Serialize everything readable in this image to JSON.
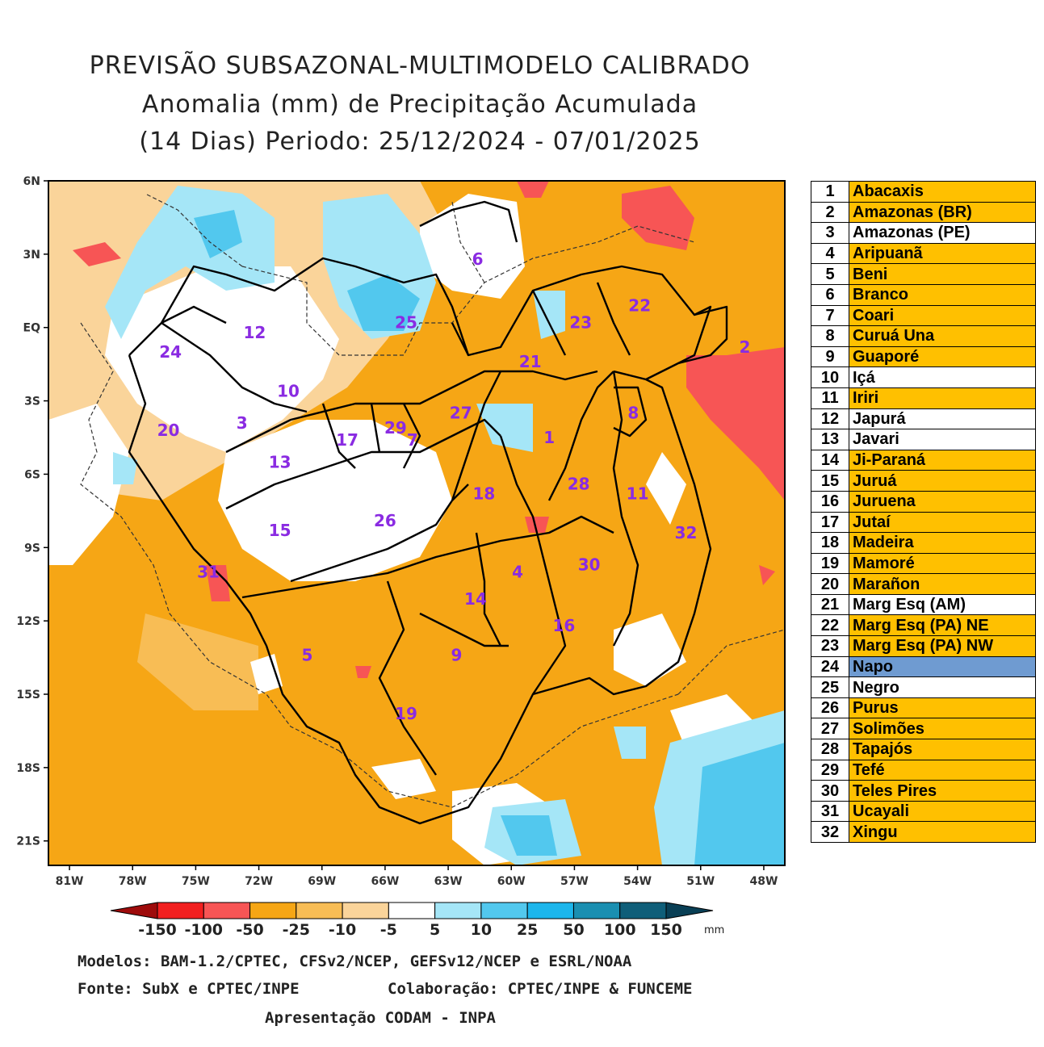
{
  "title": {
    "line1": "PREVISÃO SUBSAZONAL-MULTIMODELO CALIBRADO",
    "line2": "Anomalia (mm) de Precipitação Acumulada",
    "line3": "(14 Dias) Periodo: 25/12/2024 - 07/01/2025"
  },
  "map": {
    "lat_labels": [
      "6N",
      "3N",
      "EQ",
      "3S",
      "6S",
      "9S",
      "12S",
      "15S",
      "18S",
      "21S"
    ],
    "lon_labels": [
      "81W",
      "78W",
      "75W",
      "72W",
      "69W",
      "66W",
      "63W",
      "60W",
      "57W",
      "54W",
      "51W",
      "48W"
    ],
    "lat_range": [
      6,
      -22
    ],
    "lon_range": [
      -82,
      -47
    ],
    "basin_labels": [
      {
        "n": "1",
        "lon": -58.2,
        "lat": -4.5
      },
      {
        "n": "2",
        "lon": -48.9,
        "lat": -0.8
      },
      {
        "n": "3",
        "lon": -72.8,
        "lat": -3.9
      },
      {
        "n": "4",
        "lon": -59.7,
        "lat": -10.0
      },
      {
        "n": "5",
        "lon": -69.7,
        "lat": -13.4
      },
      {
        "n": "6",
        "lon": -61.6,
        "lat": 2.8
      },
      {
        "n": "7",
        "lon": -64.7,
        "lat": -4.6
      },
      {
        "n": "8",
        "lon": -54.2,
        "lat": -3.5
      },
      {
        "n": "9",
        "lon": -62.6,
        "lat": -13.4
      },
      {
        "n": "10",
        "lon": -70.6,
        "lat": -2.6
      },
      {
        "n": "11",
        "lon": -54.0,
        "lat": -6.8
      },
      {
        "n": "12",
        "lon": -72.2,
        "lat": -0.2
      },
      {
        "n": "13",
        "lon": -71.0,
        "lat": -5.5
      },
      {
        "n": "14",
        "lon": -61.7,
        "lat": -11.1
      },
      {
        "n": "15",
        "lon": -71.0,
        "lat": -8.3
      },
      {
        "n": "16",
        "lon": -57.5,
        "lat": -12.2
      },
      {
        "n": "17",
        "lon": -67.8,
        "lat": -4.6
      },
      {
        "n": "18",
        "lon": -61.3,
        "lat": -6.8
      },
      {
        "n": "19",
        "lon": -65.0,
        "lat": -15.8
      },
      {
        "n": "20",
        "lon": -76.3,
        "lat": -4.2
      },
      {
        "n": "21",
        "lon": -59.1,
        "lat": -1.4
      },
      {
        "n": "22",
        "lon": -53.9,
        "lat": 0.9
      },
      {
        "n": "23",
        "lon": -56.7,
        "lat": 0.2
      },
      {
        "n": "24",
        "lon": -76.2,
        "lat": -1.0
      },
      {
        "n": "25",
        "lon": -65.0,
        "lat": 0.2
      },
      {
        "n": "26",
        "lon": -66.0,
        "lat": -7.9
      },
      {
        "n": "27",
        "lon": -62.4,
        "lat": -3.5
      },
      {
        "n": "28",
        "lon": -56.8,
        "lat": -6.4
      },
      {
        "n": "29",
        "lon": -65.5,
        "lat": -4.1
      },
      {
        "n": "30",
        "lon": -56.3,
        "lat": -9.7
      },
      {
        "n": "31",
        "lon": -74.4,
        "lat": -10.0
      },
      {
        "n": "32",
        "lon": -51.7,
        "lat": -8.4
      }
    ]
  },
  "colorbar": {
    "labels": [
      "-150",
      "-100",
      "-50",
      "-25",
      "-10",
      "-5",
      "5",
      "10",
      "25",
      "50",
      "100",
      "150"
    ],
    "unit": "mm",
    "colors": [
      "#9e0b0b",
      "#f21f1f",
      "#f75555",
      "#f6a615",
      "#f8bd55",
      "#fad49a",
      "#ffffff",
      "#a5e6f7",
      "#52c8ee",
      "#1cb6ec",
      "#1a8fb1",
      "#0f5e79",
      "#093f55"
    ]
  },
  "legend": [
    {
      "num": "1",
      "name": "Abacaxis",
      "color": "#ffc000"
    },
    {
      "num": "2",
      "name": "Amazonas (BR)",
      "color": "#ffc000"
    },
    {
      "num": "3",
      "name": "Amazonas (PE)",
      "color": "#ffffff"
    },
    {
      "num": "4",
      "name": "Aripuanã",
      "color": "#ffc000"
    },
    {
      "num": "5",
      "name": "Beni",
      "color": "#ffc000"
    },
    {
      "num": "6",
      "name": "Branco",
      "color": "#ffc000"
    },
    {
      "num": "7",
      "name": "Coari",
      "color": "#ffc000"
    },
    {
      "num": "8",
      "name": "Curuá Una",
      "color": "#ffc000"
    },
    {
      "num": "9",
      "name": "Guaporé",
      "color": "#ffc000"
    },
    {
      "num": "10",
      "name": "Içá",
      "color": "#ffffff"
    },
    {
      "num": "11",
      "name": "Iriri",
      "color": "#ffc000"
    },
    {
      "num": "12",
      "name": "Japurá",
      "color": "#ffffff"
    },
    {
      "num": "13",
      "name": "Javari",
      "color": "#ffffff"
    },
    {
      "num": "14",
      "name": "Ji-Paraná",
      "color": "#ffc000"
    },
    {
      "num": "15",
      "name": "Juruá",
      "color": "#ffc000"
    },
    {
      "num": "16",
      "name": "Juruena",
      "color": "#ffc000"
    },
    {
      "num": "17",
      "name": "Jutaí",
      "color": "#ffc000"
    },
    {
      "num": "18",
      "name": "Madeira",
      "color": "#ffc000"
    },
    {
      "num": "19",
      "name": "Mamoré",
      "color": "#ffc000"
    },
    {
      "num": "20",
      "name": "Marañon",
      "color": "#ffc000"
    },
    {
      "num": "21",
      "name": "Marg Esq (AM)",
      "color": "#ffffff"
    },
    {
      "num": "22",
      "name": "Marg Esq (PA) NE",
      "color": "#ffc000"
    },
    {
      "num": "23",
      "name": "Marg Esq (PA) NW",
      "color": "#ffc000"
    },
    {
      "num": "24",
      "name": "Napo",
      "color": "#6f9bd1"
    },
    {
      "num": "25",
      "name": "Negro",
      "color": "#ffffff"
    },
    {
      "num": "26",
      "name": "Purus",
      "color": "#ffc000"
    },
    {
      "num": "27",
      "name": "Solimões",
      "color": "#ffc000"
    },
    {
      "num": "28",
      "name": "Tapajós",
      "color": "#ffc000"
    },
    {
      "num": "29",
      "name": "Tefé",
      "color": "#ffc000"
    },
    {
      "num": "30",
      "name": "Teles Pires",
      "color": "#ffc000"
    },
    {
      "num": "31",
      "name": "Ucayali",
      "color": "#ffc000"
    },
    {
      "num": "32",
      "name": "Xingu",
      "color": "#ffc000"
    }
  ],
  "footer": {
    "models": "Modelos: BAM-1.2/CPTEC, CFSv2/NCEP, GEFSv12/NCEP e ESRL/NOAA",
    "source": "Fonte: SubX e CPTEC/INPE",
    "collab": "Colaboração: CPTEC/INPE & FUNCEME",
    "presentation": "Apresentação CODAM - INPA"
  }
}
